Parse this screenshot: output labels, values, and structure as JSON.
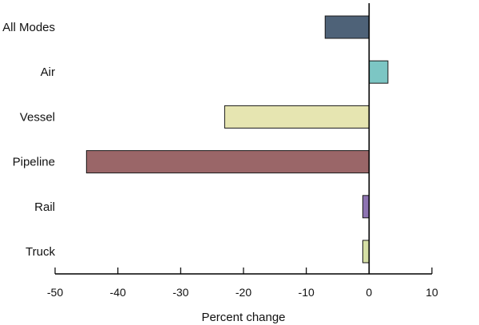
{
  "chart_data": {
    "type": "bar",
    "orientation": "horizontal",
    "categories": [
      "All Modes",
      "Air",
      "Vessel",
      "Pipeline",
      "Rail",
      "Truck"
    ],
    "values": [
      -7,
      3,
      -23,
      -45,
      -1,
      -1
    ],
    "colors": [
      "#4e6278",
      "#7cc6c4",
      "#e6e5b1",
      "#9a6668",
      "#8e74b2",
      "#d6e0a6"
    ],
    "xlabel": "Percent change",
    "ylabel": "",
    "xlim": [
      -50,
      10
    ],
    "xticks": [
      -50,
      -40,
      -30,
      -20,
      -10,
      0,
      10
    ],
    "xtick_labels": [
      "-50",
      "-40",
      "-30",
      "-20",
      "-10",
      "0",
      "10"
    ],
    "grid": false
  }
}
